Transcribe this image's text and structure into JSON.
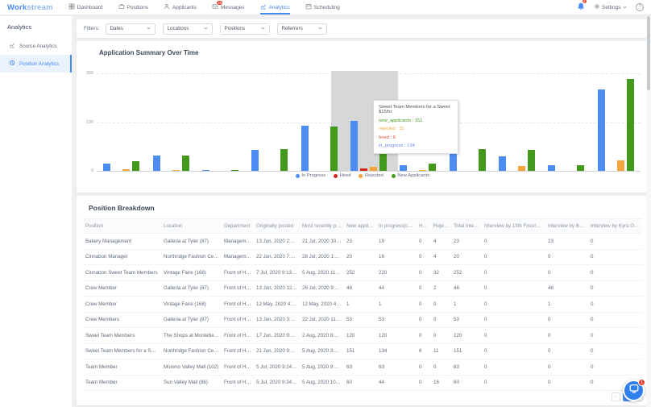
{
  "nav": {
    "logo_bold": "Work",
    "logo_light": "stream",
    "items": [
      {
        "label": "Dashboard",
        "icon": "dashboard-icon"
      },
      {
        "label": "Positions",
        "icon": "positions-icon"
      },
      {
        "label": "Applicants",
        "icon": "applicants-icon"
      },
      {
        "label": "Messages",
        "icon": "messages-icon",
        "badge": "19"
      },
      {
        "label": "Analytics",
        "icon": "analytics-icon",
        "active": true
      },
      {
        "label": "Scheduling",
        "icon": "scheduling-icon"
      }
    ],
    "bell_badge": "2",
    "settings_label": "Settings",
    "help_label": "?"
  },
  "sidebar": {
    "title": "Analytics",
    "items": [
      {
        "label": "Source Analytics",
        "icon": "line-chart-icon",
        "active": false
      },
      {
        "label": "Position Analytics",
        "icon": "pie-chart-icon",
        "active": true
      }
    ]
  },
  "filters": {
    "label": "Filters:",
    "dropdowns": [
      "Dates",
      "Locations",
      "Positions",
      "Referrers"
    ]
  },
  "chart": {
    "title": "Application Summary Over Time",
    "y_ticks": [
      "0",
      "130",
      "260"
    ],
    "legend": [
      {
        "label": "In Progress",
        "color": "#4d8cf5"
      },
      {
        "label": "Hired",
        "color": "#d0271d"
      },
      {
        "label": "Rejected",
        "color": "#f5a53d"
      },
      {
        "label": "New Applicants",
        "color": "#43991c"
      }
    ],
    "tooltip": {
      "title": "Sweet Team Members for a Sweet $15/hr",
      "lines": [
        {
          "text": "new_applicants : 151",
          "color": "#43991c"
        },
        {
          "text": "rejected : 11",
          "color": "#f5a53d"
        },
        {
          "text": "hired : 6",
          "color": "#e04a3a"
        },
        {
          "text": "in_progress : 134",
          "color": "#6a8af0"
        }
      ]
    }
  },
  "chart_data": {
    "type": "bar",
    "title": "Application Summary Over Time",
    "xlabel": "",
    "ylabel": "",
    "ylim": [
      0,
      260
    ],
    "y_ticks": [
      0,
      130,
      260
    ],
    "grid": "horizontal-dashed",
    "legend_position": "bottom",
    "x_tick_labels_visible": false,
    "n_groups": 11,
    "series": [
      {
        "name": "In Progress",
        "color": "#4d8cf5",
        "values": [
          19,
          41,
          2,
          55,
          120,
          134,
          15,
          55,
          38,
          15,
          217
        ]
      },
      {
        "name": "Hired",
        "color": "#d0271d",
        "values": [
          0,
          0,
          0,
          0,
          0,
          6,
          0,
          0,
          0,
          0,
          0
        ]
      },
      {
        "name": "Rejected",
        "color": "#f5a53d",
        "values": [
          5,
          3,
          0,
          0,
          0,
          11,
          3,
          0,
          12,
          0,
          28
        ]
      },
      {
        "name": "New Applicants",
        "color": "#43991c",
        "values": [
          25,
          41,
          2,
          58,
          118,
          151,
          20,
          57,
          55,
          15,
          245
        ]
      }
    ],
    "highlighted_group_index": 5,
    "tooltip": {
      "group_title": "Sweet Team Members for a Sweet $15/hr",
      "new_applicants": 151,
      "rejected": 11,
      "hired": 6,
      "in_progress": 134
    }
  },
  "table": {
    "title": "Position Breakdown",
    "columns": [
      "Position",
      "Location",
      "Department",
      "Originally posted",
      "Most recently posted",
      "New applicants",
      "In progress(current)",
      "Hired",
      "Rejected",
      "Total Interview",
      "Interview by 13th Floor/Pilot, Llc Support",
      "Interview by Brenda",
      "Interview by Kyra Ort..."
    ],
    "rows": [
      [
        "Bakery Management",
        "Galleria at Tyler (87)",
        "Management",
        "13 Jun, 2020 2:55 AM",
        "21 Jul, 2020 10:35 AM",
        "23",
        "19",
        "0",
        "4",
        "23",
        "0",
        "23",
        "0"
      ],
      [
        "Cinnabon Manager",
        "Northridge Fashion Center (36)",
        "Management",
        "22 Jun, 2020 7:09 PM",
        "28 Jul, 2020 1:55 AM",
        "20",
        "16",
        "0",
        "4",
        "20",
        "0",
        "0",
        "0"
      ],
      [
        "Cinnabon Sweet Team Members",
        "Vintage Faire (168)",
        "Front of House",
        "7 Jul, 2020 9:13 PM",
        "5 Aug, 2020 11:36 AM",
        "252",
        "220",
        "0",
        "32",
        "252",
        "0",
        "0",
        "0"
      ],
      [
        "Crew Member",
        "Galleria at Tyler (87)",
        "Front of House",
        "13 Jun, 2020 12:08 AM",
        "26 Jul, 2020 9:07 PM",
        "46",
        "44",
        "0",
        "2",
        "46",
        "0",
        "46",
        "0"
      ],
      [
        "Crew Member",
        "Vintage Faire (168)",
        "Front of House",
        "12 May, 2020 4:46 PM",
        "12 May, 2020 4:46 PM",
        "1",
        "1",
        "0",
        "0",
        "1",
        "0",
        "1",
        "0"
      ],
      [
        "Crew Members",
        "Galleria at Tyler (87)",
        "Front of House",
        "13 Jun, 2020 3:00 AM",
        "22 Jul, 2020 11:31 AM",
        "53",
        "53",
        "0",
        "0",
        "53",
        "0",
        "0",
        "0"
      ],
      [
        "Sweet Team Members",
        "The Shops at Montebello (124)",
        "Front of House",
        "17 Jun, 2020 9:15 PM",
        "2 Aug, 2020 8:19 PM",
        "120",
        "120",
        "0",
        "0",
        "120",
        "0",
        "0",
        "0"
      ],
      [
        "Sweet Team Members for a Sweet $15/hr",
        "Northridge Fashion Center (36)",
        "Front of House",
        "21 Jun, 2020 9:05 PM",
        "5 Aug, 2020 3:28 AM",
        "151",
        "134",
        "6",
        "11",
        "151",
        "0",
        "0",
        "0"
      ],
      [
        "Team Member",
        "Moreno Valley Mall (102)",
        "Front of House",
        "5 Jul, 2020 9:24 PM",
        "5 Aug, 2020 9:50 AM",
        "63",
        "63",
        "0",
        "0",
        "63",
        "0",
        "0",
        "0"
      ],
      [
        "Team Member",
        "Sun Valley Mall (86)",
        "Front of House",
        "5 Jul, 2020 9:34 PM",
        "5 Aug, 2020 10:15 AM",
        "60",
        "44",
        "0",
        "16",
        "60",
        "0",
        "0",
        "0"
      ]
    ]
  },
  "pagination": {
    "prev_label": "‹",
    "pages": [
      "1",
      "2"
    ],
    "active_page": "1"
  },
  "chat_badge": "1"
}
